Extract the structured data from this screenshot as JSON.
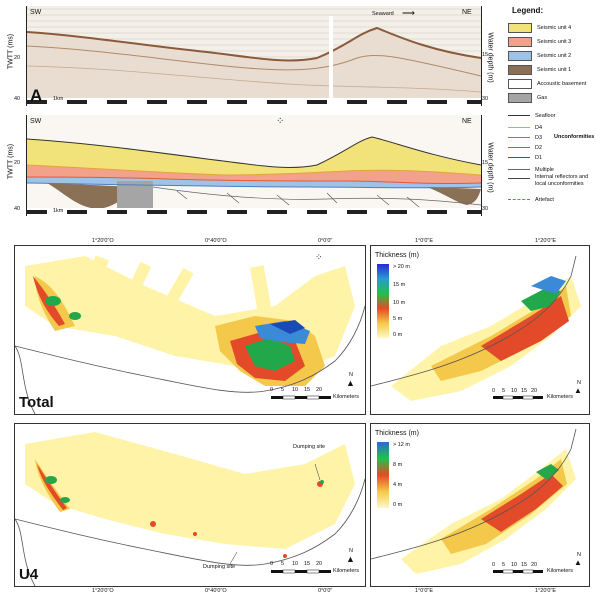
{
  "profile_a": {
    "left_label": "SW",
    "right_label": "NE",
    "seaward_label": "Seaward",
    "panel_letter": "A",
    "y_axis": "TWTT (ms)",
    "y_ticks": [
      "20",
      "40"
    ],
    "right_axis": "Water depth (m)",
    "right_ticks": [
      "15",
      "30"
    ],
    "scale": "1km"
  },
  "profile_b": {
    "left_label": "SW",
    "right_label": "NE",
    "y_axis": "TWTT (ms)",
    "y_ticks": [
      "20",
      "40"
    ],
    "right_axis": "Water depth (m)",
    "right_ticks": [
      "15",
      "30"
    ],
    "scale": "1km"
  },
  "legend": {
    "title": "Legend:",
    "units": [
      {
        "label": "Seismic unit 4",
        "color": "#f2e27a"
      },
      {
        "label": "Seismic unit 3",
        "color": "#f2a18a"
      },
      {
        "label": "Seismic unit 2",
        "color": "#9ec3e6"
      },
      {
        "label": "Seismic unit 1",
        "color": "#8a7055"
      },
      {
        "label": "Accoustic basement",
        "color": "#ffffff"
      },
      {
        "label": "Gas",
        "color": "#a5a5a5"
      }
    ],
    "lines": [
      {
        "label": "Seafloor",
        "color": "#333333"
      },
      {
        "label": "D4",
        "color": "#e6a23c"
      },
      {
        "label": "D3",
        "color": "#e05a3a"
      },
      {
        "label": "D2",
        "color": "#4a7fc1"
      },
      {
        "label": "D1",
        "color": "#6b4a2e"
      },
      {
        "label": "Multiple",
        "color": "#666666"
      },
      {
        "label": "Internal reflectors and local unconformities",
        "color": "#444444"
      },
      {
        "label": "Artefact",
        "color": "#3aa83a"
      }
    ],
    "unconformities_label": "Unconformities"
  },
  "map_total": {
    "label": "Total",
    "scale_ticks": [
      "0",
      "5",
      "10",
      "15",
      "20"
    ],
    "scale_unit": "Kilometers",
    "north": "N",
    "lon_ticks": [
      "1°20'0\"O",
      "0°40'0\"O",
      "0°0'0\""
    ]
  },
  "map_u4": {
    "label": "U4",
    "dumping_label_1": "Dumping site",
    "dumping_label_2": "Dumping site",
    "scale_ticks": [
      "0",
      "5",
      "10",
      "15",
      "20"
    ],
    "scale_unit": "Kilometers",
    "north": "N",
    "lon_ticks": [
      "1°20'0\"O",
      "0°40'0\"O",
      "0°0'0\""
    ]
  },
  "inset_total": {
    "title": "Thickness (m)",
    "ticks": [
      "> 20 m",
      "15 m",
      "10 m",
      "5 m",
      "0 m"
    ],
    "scale_ticks": [
      "0",
      "5",
      "10",
      "15",
      "20"
    ],
    "scale_unit": "Kilometers",
    "north": "N",
    "lon_ticks": [
      "1°0'0\"E",
      "1°20'0\"E"
    ]
  },
  "inset_u4": {
    "title": "Thickness (m)",
    "ticks": [
      "> 12 m",
      "8 m",
      "4 m",
      "0 m"
    ],
    "scale_ticks": [
      "0",
      "5",
      "10",
      "15",
      "20"
    ],
    "scale_unit": "Kilometers",
    "north": "N",
    "lon_ticks": [
      "1°0'0\"E",
      "1°20'0\"E"
    ]
  }
}
